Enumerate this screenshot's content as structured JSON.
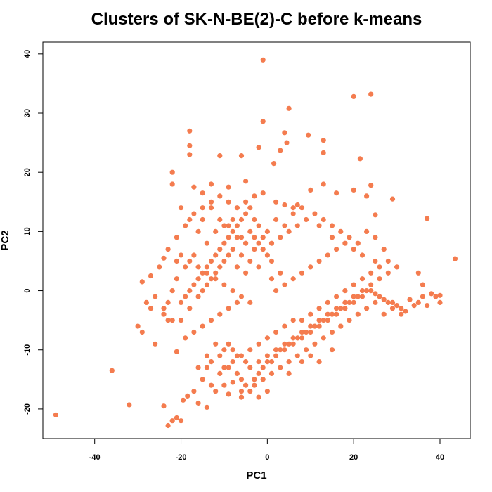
{
  "chart_data": {
    "type": "scatter",
    "title": "Clusters of SK-N-BE(2)-C before k-means",
    "xlabel": "PC1",
    "ylabel": "PC2",
    "xlim": [
      -52,
      47
    ],
    "ylim": [
      -25,
      42
    ],
    "xticks": [
      -40,
      -20,
      0,
      20,
      40
    ],
    "yticks": [
      -20,
      -10,
      0,
      10,
      20,
      30,
      40
    ],
    "point_color": "#F47C4F",
    "points": [
      [
        -49,
        -21
      ],
      [
        -36,
        -13.5
      ],
      [
        -32,
        -19.3
      ],
      [
        -24,
        -19.5
      ],
      [
        -23,
        -22.8
      ],
      [
        -22,
        -22
      ],
      [
        -21,
        -21.5
      ],
      [
        -20,
        -22
      ],
      [
        -1,
        39
      ],
      [
        20,
        32.8
      ],
      [
        24,
        33.2
      ],
      [
        5,
        30.8
      ],
      [
        -1,
        28.6
      ],
      [
        -18,
        27
      ],
      [
        -18,
        24.5
      ],
      [
        -18,
        23
      ],
      [
        -11,
        22.8
      ],
      [
        -6,
        22.8
      ],
      [
        -2,
        24.2
      ],
      [
        3,
        23.7
      ],
      [
        4,
        26.7
      ],
      [
        4.5,
        25
      ],
      [
        9.5,
        26.3
      ],
      [
        13,
        25.4
      ],
      [
        13,
        23.3
      ],
      [
        21.5,
        22.3
      ],
      [
        1.5,
        21.5
      ],
      [
        -22,
        20
      ],
      [
        -22,
        18
      ],
      [
        -17,
        17.5
      ],
      [
        -15,
        16.5
      ],
      [
        -13,
        18
      ],
      [
        -9,
        17.5
      ],
      [
        -5,
        18.5
      ],
      [
        -3,
        16
      ],
      [
        -1,
        16.5
      ],
      [
        2,
        15
      ],
      [
        4,
        14.5
      ],
      [
        6,
        14
      ],
      [
        7,
        14.5
      ],
      [
        10,
        17
      ],
      [
        13,
        18
      ],
      [
        16,
        16.5
      ],
      [
        12,
        11
      ],
      [
        15,
        9
      ],
      [
        20,
        17
      ],
      [
        23,
        16
      ],
      [
        24,
        17.8
      ],
      [
        29,
        15.5
      ],
      [
        25,
        12.8
      ],
      [
        37,
        12.2
      ],
      [
        43.5,
        5.4
      ],
      [
        -21,
        5
      ],
      [
        -24,
        5.5
      ],
      [
        -25,
        4
      ],
      [
        -27,
        2.5
      ],
      [
        -29,
        1.5
      ],
      [
        -26,
        -1
      ],
      [
        -28,
        -2
      ],
      [
        -27,
        -3
      ],
      [
        -24,
        -4
      ],
      [
        -23,
        -5
      ],
      [
        -22,
        -5
      ],
      [
        -21,
        -10.3
      ],
      [
        -30,
        -6
      ],
      [
        -29,
        -7
      ],
      [
        -26,
        -9
      ],
      [
        -19.5,
        -18.5
      ],
      [
        -18.5,
        -17.8
      ],
      [
        -16,
        -19
      ],
      [
        -14,
        -19.7
      ],
      [
        -17,
        -17
      ],
      [
        -15,
        -15
      ],
      [
        -13,
        -16
      ],
      [
        -14,
        -11
      ],
      [
        -12,
        -9
      ],
      [
        -10,
        -10
      ],
      [
        -8,
        -12
      ],
      [
        -7,
        -14
      ],
      [
        -6,
        -15
      ],
      [
        -5,
        -16
      ],
      [
        -4,
        -17
      ],
      [
        -3,
        -15
      ],
      [
        -2,
        -14
      ],
      [
        -1,
        -13
      ],
      [
        0,
        -12
      ],
      [
        1,
        -12
      ],
      [
        2,
        -11
      ],
      [
        3,
        -10
      ],
      [
        4,
        -10
      ],
      [
        5,
        -9
      ],
      [
        6,
        -9
      ],
      [
        7,
        -8
      ],
      [
        8,
        -8
      ],
      [
        9,
        -7
      ],
      [
        10,
        -7
      ],
      [
        11,
        -6
      ],
      [
        12,
        -6
      ],
      [
        13,
        -5
      ],
      [
        14,
        -5
      ],
      [
        15,
        -4
      ],
      [
        16,
        -4
      ],
      [
        17,
        -3
      ],
      [
        18,
        -3
      ],
      [
        19,
        -2
      ],
      [
        20,
        -2
      ],
      [
        21,
        -1
      ],
      [
        22,
        -1
      ],
      [
        23,
        0
      ],
      [
        24,
        0
      ],
      [
        25,
        -0.5
      ],
      [
        26,
        -1
      ],
      [
        27,
        -1.5
      ],
      [
        28,
        -2
      ],
      [
        29,
        -2
      ],
      [
        30,
        -2.5
      ],
      [
        31,
        -3
      ],
      [
        32,
        -3.5
      ],
      [
        33,
        -1.5
      ],
      [
        35,
        -2
      ],
      [
        36,
        -1
      ],
      [
        37,
        -2.5
      ],
      [
        38,
        -0.5
      ],
      [
        39,
        -1
      ],
      [
        40,
        -2
      ],
      [
        35,
        3
      ],
      [
        36,
        1
      ],
      [
        40,
        -0.8
      ],
      [
        34,
        -2.5
      ],
      [
        -12,
        -17
      ],
      [
        -10,
        -16
      ],
      [
        -9,
        -17.5
      ],
      [
        -11,
        -14
      ],
      [
        -8,
        -15.5
      ],
      [
        -6,
        -17
      ],
      [
        -4,
        -13
      ],
      [
        -2,
        -12
      ],
      [
        0,
        -11
      ],
      [
        2,
        -10
      ],
      [
        4,
        -9
      ],
      [
        6,
        -8
      ],
      [
        8,
        -7
      ],
      [
        10,
        -6
      ],
      [
        12,
        -5
      ],
      [
        14,
        -4
      ],
      [
        16,
        -3
      ],
      [
        18,
        -2
      ],
      [
        20,
        -1
      ],
      [
        22,
        0
      ],
      [
        24,
        1
      ],
      [
        26,
        2
      ],
      [
        28,
        3
      ],
      [
        30,
        4
      ],
      [
        25,
        5
      ],
      [
        22,
        6
      ],
      [
        20,
        7
      ],
      [
        18,
        8
      ],
      [
        16,
        7
      ],
      [
        14,
        6
      ],
      [
        12,
        5
      ],
      [
        10,
        4
      ],
      [
        8,
        3
      ],
      [
        6,
        2
      ],
      [
        4,
        1
      ],
      [
        2,
        0
      ],
      [
        3,
        3
      ],
      [
        1,
        2
      ],
      [
        -20,
        -2
      ],
      [
        -19,
        -1
      ],
      [
        -18,
        0
      ],
      [
        -17,
        1
      ],
      [
        -16,
        2
      ],
      [
        -15,
        3
      ],
      [
        -14,
        4
      ],
      [
        -13,
        5
      ],
      [
        -12,
        6
      ],
      [
        -11,
        7
      ],
      [
        -10,
        8
      ],
      [
        -9,
        9
      ],
      [
        -8,
        10
      ],
      [
        -7,
        11
      ],
      [
        -6,
        12
      ],
      [
        -5,
        13
      ],
      [
        -4,
        10
      ],
      [
        -3,
        9
      ],
      [
        -2,
        8
      ],
      [
        -1,
        7
      ],
      [
        0,
        6
      ],
      [
        1,
        5
      ],
      [
        -14,
        8
      ],
      [
        -16,
        10
      ],
      [
        -18,
        12
      ],
      [
        -20,
        14
      ],
      [
        -15,
        12
      ],
      [
        -13,
        14
      ],
      [
        -11,
        12
      ],
      [
        -9,
        11
      ],
      [
        -7,
        9
      ],
      [
        -5,
        8
      ],
      [
        -3,
        7
      ],
      [
        -17,
        6
      ],
      [
        -19,
        4
      ],
      [
        -21,
        2
      ],
      [
        -22,
        0
      ],
      [
        -23,
        -2
      ],
      [
        -24,
        -3
      ],
      [
        -20,
        -5
      ],
      [
        -18,
        -3
      ],
      [
        -16,
        -1
      ],
      [
        -14,
        1
      ],
      [
        -12,
        3
      ],
      [
        -10,
        5
      ],
      [
        -8,
        7
      ],
      [
        -6,
        6
      ],
      [
        -4,
        5
      ],
      [
        -2,
        4
      ],
      [
        -15,
        0
      ],
      [
        -13,
        2
      ],
      [
        -11,
        4
      ],
      [
        -9,
        6
      ],
      [
        -7,
        4
      ],
      [
        -5,
        3
      ],
      [
        -12,
        10
      ],
      [
        -10,
        11
      ],
      [
        -8,
        12
      ],
      [
        -6,
        9
      ],
      [
        -4,
        14
      ],
      [
        -2,
        11
      ],
      [
        0,
        10
      ],
      [
        2,
        12
      ],
      [
        4,
        11
      ],
      [
        6,
        13
      ],
      [
        8,
        14
      ],
      [
        -14,
        -13
      ],
      [
        -9,
        -13
      ],
      [
        -7,
        -11
      ],
      [
        -5,
        -12
      ],
      [
        -3,
        -16
      ],
      [
        -1,
        -15
      ],
      [
        1,
        -14
      ],
      [
        3,
        -13
      ],
      [
        5,
        -12
      ],
      [
        7,
        -11
      ],
      [
        9,
        -10
      ],
      [
        11,
        -9
      ],
      [
        13,
        -8
      ],
      [
        15,
        -7
      ],
      [
        17,
        -6
      ],
      [
        19,
        -5
      ],
      [
        21,
        -4
      ],
      [
        23,
        -3
      ],
      [
        25,
        -2
      ],
      [
        27,
        -4
      ],
      [
        29,
        -3
      ],
      [
        31,
        -4
      ],
      [
        5,
        -14
      ],
      [
        8,
        -12
      ],
      [
        10,
        -11
      ],
      [
        12,
        -12
      ],
      [
        15,
        -10
      ],
      [
        -2,
        -18
      ],
      [
        0,
        -17
      ],
      [
        -6,
        -18
      ],
      [
        -9,
        -9
      ],
      [
        -11,
        -11
      ],
      [
        -13,
        -12
      ],
      [
        -16,
        -13
      ],
      [
        -10,
        -13
      ],
      [
        -8,
        -10
      ],
      [
        -6,
        -11
      ],
      [
        -4,
        -10
      ],
      [
        -2,
        -9
      ],
      [
        0,
        -8
      ],
      [
        2,
        -7
      ],
      [
        4,
        -6
      ],
      [
        6,
        -5
      ],
      [
        8,
        -5
      ],
      [
        10,
        -4
      ],
      [
        12,
        -3
      ],
      [
        14,
        -2
      ],
      [
        16,
        -1
      ],
      [
        18,
        0
      ],
      [
        20,
        1
      ],
      [
        22,
        2
      ],
      [
        24,
        3
      ],
      [
        26,
        4
      ],
      [
        28,
        5
      ],
      [
        27,
        7
      ],
      [
        25,
        9
      ],
      [
        23,
        10
      ],
      [
        21,
        8
      ],
      [
        19,
        9
      ],
      [
        17,
        10
      ],
      [
        15,
        11
      ],
      [
        13,
        12
      ],
      [
        11,
        13
      ],
      [
        9,
        12
      ],
      [
        7,
        11
      ],
      [
        5,
        10
      ],
      [
        3,
        9
      ],
      [
        1,
        8
      ],
      [
        -1,
        9
      ],
      [
        -3,
        12
      ],
      [
        -5,
        15
      ],
      [
        -7,
        14
      ],
      [
        -9,
        15
      ],
      [
        -11,
        16
      ],
      [
        -13,
        15
      ],
      [
        -15,
        14
      ],
      [
        -17,
        13
      ],
      [
        -19,
        11
      ],
      [
        -21,
        9
      ],
      [
        -23,
        7
      ],
      [
        -20,
        6
      ],
      [
        -18,
        5
      ],
      [
        -16,
        4
      ],
      [
        -14,
        3
      ],
      [
        -12,
        2
      ],
      [
        -10,
        1
      ],
      [
        -8,
        0
      ],
      [
        -6,
        -1
      ],
      [
        -4,
        -2
      ],
      [
        -19,
        -8
      ],
      [
        -17,
        -7
      ],
      [
        -15,
        -6
      ],
      [
        -13,
        -5
      ],
      [
        -11,
        -4
      ],
      [
        -9,
        -3
      ],
      [
        -7,
        -2
      ]
    ]
  }
}
